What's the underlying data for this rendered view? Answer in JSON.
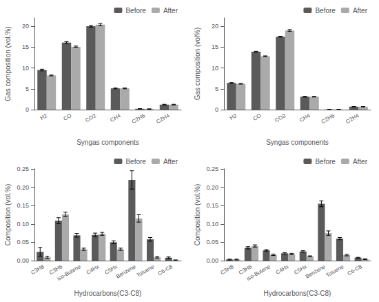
{
  "chart_data": [
    {
      "type": "bar",
      "categories": [
        "H2",
        "CO",
        "CO2",
        "CH4",
        "C2H6",
        "C2H4"
      ],
      "series": [
        {
          "name": "Before",
          "color": "#5a5a5a",
          "values": [
            9.5,
            16.1,
            20.0,
            5.1,
            0.2,
            1.2
          ],
          "errors": [
            0.2,
            0.2,
            0.2,
            0.1,
            0.03,
            0.08
          ]
        },
        {
          "name": "After",
          "color": "#aaaaaa",
          "values": [
            8.2,
            15.1,
            20.4,
            5.1,
            0.15,
            1.2
          ],
          "errors": [
            0.1,
            0.15,
            0.25,
            0.1,
            0.03,
            0.08
          ]
        }
      ],
      "xlabel": "Syngas components",
      "ylabel": "Gas composition (vol.%)",
      "ylim": [
        0,
        22
      ],
      "yticks": [
        0,
        5,
        10,
        15,
        20
      ],
      "legend": "upper right",
      "grid": false
    },
    {
      "type": "bar",
      "categories": [
        "H2",
        "CO",
        "CO2",
        "CH4",
        "C2H6",
        "C2H4"
      ],
      "series": [
        {
          "name": "Before",
          "color": "#5a5a5a",
          "values": [
            6.4,
            13.9,
            17.5,
            3.1,
            0.05,
            0.7
          ],
          "errors": [
            0.1,
            0.1,
            0.1,
            0.1,
            0.02,
            0.04
          ]
        },
        {
          "name": "After",
          "color": "#aaaaaa",
          "values": [
            6.2,
            12.8,
            19.0,
            3.1,
            0.05,
            0.7
          ],
          "errors": [
            0.08,
            0.1,
            0.2,
            0.08,
            0.02,
            0.04
          ]
        }
      ],
      "xlabel": "Syngas components",
      "ylabel": "Gas composition (vol%)",
      "ylim": [
        0,
        22
      ],
      "yticks": [
        0,
        5,
        10,
        15,
        20
      ],
      "legend": "upper right",
      "grid": false
    },
    {
      "type": "bar",
      "categories": [
        "C3H8",
        "C3H6",
        "iso-Butene",
        "C4Hx",
        "C5Hx",
        "Benzene",
        "Toluene",
        "C6-C8"
      ],
      "series": [
        {
          "name": "Before",
          "color": "#5a5a5a",
          "values": [
            0.024,
            0.109,
            0.069,
            0.07,
            0.05,
            0.22,
            0.058,
            0.008
          ],
          "errors": [
            0.012,
            0.008,
            0.005,
            0.005,
            0.004,
            0.025,
            0.005,
            0.002
          ]
        },
        {
          "name": "After",
          "color": "#aaaaaa",
          "values": [
            0.009,
            0.126,
            0.031,
            0.073,
            0.031,
            0.115,
            0.009,
            0.001
          ],
          "errors": [
            0.003,
            0.006,
            0.003,
            0.004,
            0.003,
            0.01,
            0.002,
            0.001
          ]
        }
      ],
      "xlabel": "Hydrocarbons(C3-C8)",
      "ylabel": "Composition (vol.%)",
      "ylim": [
        0,
        0.25
      ],
      "yticks": [
        {
          "value": 0,
          "label": "0.00"
        },
        {
          "value": 0.05,
          "label": "0.05"
        },
        {
          "value": 0.1,
          "label": "0.10"
        },
        {
          "value": 0.15,
          "label": "0.15"
        },
        {
          "value": 0.2,
          "label": "0.20"
        },
        {
          "value": 0.25,
          "label": "0.25"
        }
      ],
      "legend": "upper right",
      "grid": false
    },
    {
      "type": "bar",
      "categories": [
        "C3H8",
        "C3H6",
        "iso-Butene",
        "C4Hx",
        "C5Hx",
        "Benzene",
        "Toluene",
        "C6-C8"
      ],
      "series": [
        {
          "name": "Before",
          "color": "#5a5a5a",
          "values": [
            0.003,
            0.035,
            0.028,
            0.02,
            0.025,
            0.155,
            0.06,
            0.008
          ],
          "errors": [
            0.001,
            0.003,
            0.002,
            0.002,
            0.002,
            0.008,
            0.003,
            0.001
          ]
        },
        {
          "name": "After",
          "color": "#aaaaaa",
          "values": [
            0.003,
            0.04,
            0.016,
            0.018,
            0.012,
            0.075,
            0.015,
            0.004
          ],
          "errors": [
            0.001,
            0.003,
            0.002,
            0.002,
            0.001,
            0.006,
            0.002,
            0.001
          ]
        }
      ],
      "xlabel": "Hydrocarbons(C3-C8)",
      "ylabel": "Composition (vol.%)",
      "ylim": [
        0,
        0.25
      ],
      "yticks": [
        {
          "value": 0,
          "label": "0.00"
        },
        {
          "value": 0.05,
          "label": "0.05"
        },
        {
          "value": 0.1,
          "label": "0.10"
        },
        {
          "value": 0.15,
          "label": "0.15"
        },
        {
          "value": 0.2,
          "label": "0.20"
        },
        {
          "value": 0.25,
          "label": "0.25"
        }
      ],
      "legend": "upper right",
      "grid": false
    }
  ]
}
